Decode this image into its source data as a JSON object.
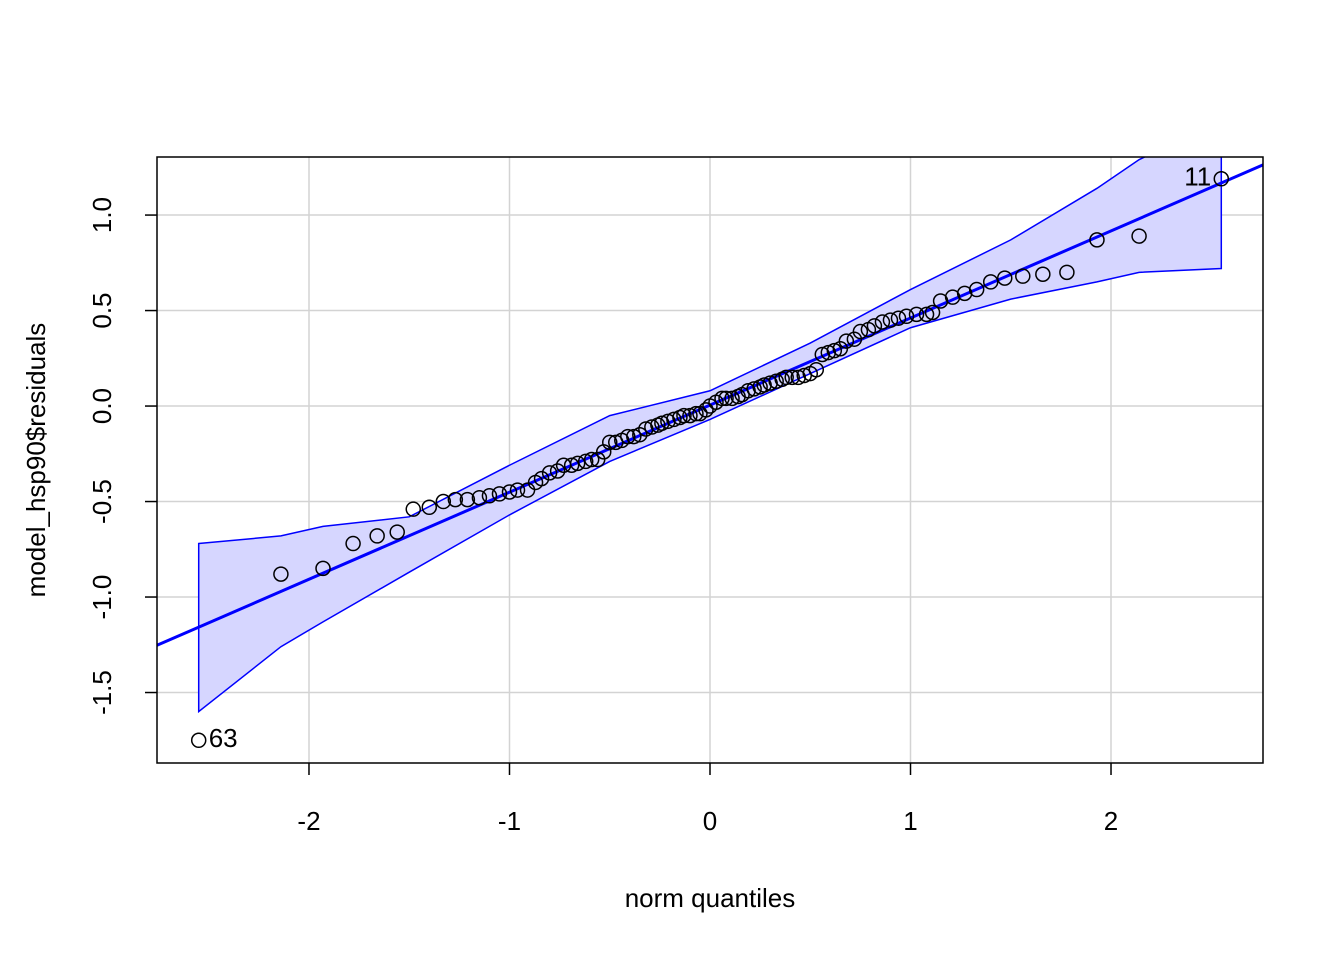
{
  "chart_data": {
    "type": "qq",
    "xlabel": "norm quantiles",
    "ylabel": "model_hsp90$residuals",
    "x": [
      -2.55,
      -2.14,
      -1.93,
      -1.78,
      -1.66,
      -1.56,
      -1.48,
      -1.4,
      -1.33,
      -1.27,
      -1.21,
      -1.15,
      -1.1,
      -1.05,
      -1.0,
      -0.96,
      -0.91,
      -0.87,
      -0.84,
      -0.8,
      -0.76,
      -0.73,
      -0.69,
      -0.66,
      -0.62,
      -0.59,
      -0.56,
      -0.53,
      -0.5,
      -0.47,
      -0.44,
      -0.41,
      -0.38,
      -0.35,
      -0.32,
      -0.29,
      -0.26,
      -0.24,
      -0.21,
      -0.18,
      -0.15,
      -0.13,
      -0.1,
      -0.07,
      -0.05,
      -0.02,
      0.0,
      0.03,
      0.06,
      0.08,
      0.11,
      0.14,
      0.16,
      0.19,
      0.22,
      0.25,
      0.27,
      0.3,
      0.33,
      0.36,
      0.38,
      0.41,
      0.44,
      0.47,
      0.5,
      0.53,
      0.56,
      0.59,
      0.62,
      0.65,
      0.68,
      0.72,
      0.75,
      0.79,
      0.82,
      0.86,
      0.9,
      0.94,
      0.98,
      1.03,
      1.08,
      1.11,
      1.15,
      1.21,
      1.27,
      1.33,
      1.4,
      1.47,
      1.56,
      1.66,
      1.78,
      1.93,
      2.14,
      2.55
    ],
    "values": [
      -1.75,
      -0.88,
      -0.85,
      -0.72,
      -0.68,
      -0.66,
      -0.54,
      -0.53,
      -0.5,
      -0.49,
      -0.49,
      -0.48,
      -0.47,
      -0.46,
      -0.45,
      -0.44,
      -0.44,
      -0.4,
      -0.38,
      -0.35,
      -0.34,
      -0.31,
      -0.31,
      -0.3,
      -0.29,
      -0.28,
      -0.28,
      -0.24,
      -0.19,
      -0.19,
      -0.18,
      -0.16,
      -0.16,
      -0.15,
      -0.12,
      -0.11,
      -0.1,
      -0.09,
      -0.08,
      -0.07,
      -0.06,
      -0.05,
      -0.05,
      -0.04,
      -0.04,
      -0.02,
      0.0,
      0.02,
      0.04,
      0.04,
      0.04,
      0.05,
      0.06,
      0.08,
      0.09,
      0.1,
      0.11,
      0.12,
      0.13,
      0.14,
      0.15,
      0.15,
      0.15,
      0.16,
      0.17,
      0.19,
      0.27,
      0.28,
      0.29,
      0.3,
      0.34,
      0.35,
      0.39,
      0.4,
      0.42,
      0.44,
      0.45,
      0.46,
      0.47,
      0.48,
      0.48,
      0.49,
      0.55,
      0.57,
      0.59,
      0.61,
      0.65,
      0.67,
      0.68,
      0.69,
      0.7,
      0.87,
      0.89,
      1.19
    ],
    "point_labels": [
      "63",
      null,
      null,
      null,
      null,
      null,
      null,
      null,
      null,
      null,
      null,
      null,
      null,
      null,
      null,
      null,
      null,
      null,
      null,
      null,
      null,
      null,
      null,
      null,
      null,
      null,
      null,
      null,
      null,
      null,
      null,
      null,
      null,
      null,
      null,
      null,
      null,
      null,
      null,
      null,
      null,
      null,
      null,
      null,
      null,
      null,
      null,
      null,
      null,
      null,
      null,
      null,
      null,
      null,
      null,
      null,
      null,
      null,
      null,
      null,
      null,
      null,
      null,
      null,
      null,
      null,
      null,
      null,
      null,
      null,
      null,
      null,
      null,
      null,
      null,
      null,
      null,
      null,
      null,
      null,
      null,
      null,
      null,
      null,
      null,
      null,
      null,
      null,
      null,
      null,
      null,
      null,
      null,
      "11"
    ],
    "line": {
      "intercept": 0.005,
      "slope": 0.456,
      "color": "#0000ff"
    },
    "envelope": {
      "x": [
        -2.55,
        -2.14,
        -1.93,
        -1.5,
        -1.0,
        -0.5,
        0,
        0.5,
        1.0,
        1.5,
        1.93,
        2.14,
        2.55
      ],
      "upper": [
        -0.72,
        -0.68,
        -0.63,
        -0.58,
        -0.31,
        -0.05,
        0.08,
        0.33,
        0.61,
        0.87,
        1.14,
        1.29,
        1.5
      ],
      "lower": [
        -1.6,
        -1.26,
        -1.13,
        -0.87,
        -0.57,
        -0.29,
        -0.07,
        0.17,
        0.41,
        0.56,
        0.65,
        0.7,
        0.72
      ],
      "color": "#0000ff",
      "fill": "#d6d6ff"
    },
    "xlim": [
      -2.758,
      2.758
    ],
    "ylim": [
      -1.869,
      1.304
    ],
    "xticks": [
      -2,
      -1,
      0,
      1,
      2
    ],
    "yticks": [
      {
        "value": -1.5,
        "label": "-1.5"
      },
      {
        "value": -1,
        "label": "-1.0"
      },
      {
        "value": -0.5,
        "label": "-0.5"
      },
      {
        "value": 0,
        "label": "0.0"
      },
      {
        "value": 0.5,
        "label": "0.5"
      },
      {
        "value": 1,
        "label": "1.0"
      }
    ],
    "grid": true
  }
}
